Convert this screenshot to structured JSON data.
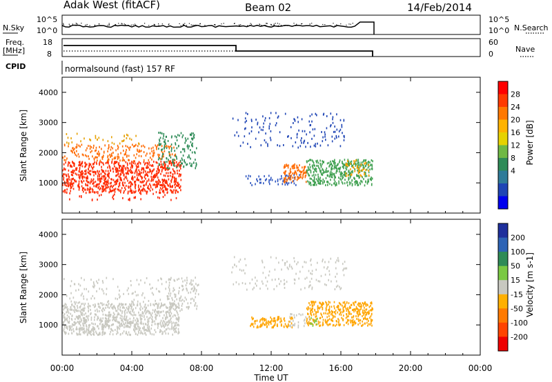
{
  "header": {
    "station": "Adak West (fitACF)",
    "beam": "Beam 02",
    "date": "14/Feb/2014"
  },
  "panel_labels": {
    "nsky": "N.Sky",
    "nsearch": "N.Search",
    "freq_line1": "Freq.",
    "freq_line2": "[MHz]",
    "nave": "Nave",
    "cpid": "CPID",
    "cpid_text": "normalsound (fast) 157 RF"
  },
  "noise_axis": {
    "left_ticks": [
      "10^5",
      "10^0"
    ],
    "right_ticks": [
      "10^5",
      "10^0"
    ]
  },
  "freq_axis": {
    "left_ticks": [
      "18",
      "8"
    ],
    "right_ticks": [
      "60",
      "0"
    ]
  },
  "chart_data": [
    {
      "type": "heatmap",
      "name": "power",
      "ylabel": "Slant Range [km]",
      "ylim": [
        0,
        4500
      ],
      "yticks": [
        1000,
        2000,
        3000,
        4000
      ],
      "xlabel": "Time UT",
      "xlim": [
        0,
        24
      ],
      "xticks": [
        "00:00",
        "04:00",
        "08:00",
        "12:00",
        "16:00",
        "20:00",
        "00:00"
      ],
      "colorbar": {
        "label": "Power [dB]",
        "ticks": [
          "28",
          "24",
          "20",
          "16",
          "12",
          "8",
          "4"
        ],
        "colors": [
          "#ff0000",
          "#ff3a00",
          "#ff7800",
          "#ffb300",
          "#e6d200",
          "#6fb944",
          "#2e8b57",
          "#2f7b99",
          "#1f45b5",
          "#0000ee"
        ]
      },
      "regions": [
        {
          "t": [
            0.0,
            6.7
          ],
          "r": [
            450,
            700
          ],
          "level": "sparse",
          "color": "#ff2200"
        },
        {
          "t": [
            0.0,
            6.8
          ],
          "r": [
            700,
            1750
          ],
          "level": "dense",
          "color": "#ff2a00"
        },
        {
          "t": [
            0.0,
            6.5
          ],
          "r": [
            1750,
            2300
          ],
          "level": "medium",
          "color": "#ff6a00"
        },
        {
          "t": [
            0.0,
            4.5
          ],
          "r": [
            2300,
            2700
          ],
          "level": "sparse",
          "color": "#e6a000"
        },
        {
          "t": [
            5.5,
            7.7
          ],
          "r": [
            1500,
            2700
          ],
          "level": "medium",
          "color": "#2e8b57"
        },
        {
          "t": [
            9.7,
            16.3
          ],
          "r": [
            2200,
            3350
          ],
          "level": "sparse",
          "color": "#1f45b5"
        },
        {
          "t": [
            10.5,
            13.6
          ],
          "r": [
            950,
            1300
          ],
          "level": "medium",
          "color": "#2f56c0"
        },
        {
          "t": [
            12.7,
            14.0
          ],
          "r": [
            1050,
            1650
          ],
          "level": "dense",
          "color": "#ff6a00"
        },
        {
          "t": [
            14.0,
            17.8
          ],
          "r": [
            950,
            1800
          ],
          "level": "dense",
          "color": "#3fa050"
        },
        {
          "t": [
            16.2,
            17.6
          ],
          "r": [
            1250,
            1800
          ],
          "level": "medium",
          "color": "#ffa000"
        }
      ]
    },
    {
      "type": "heatmap",
      "name": "velocity",
      "ylabel": "Slant Range [km]",
      "ylim": [
        0,
        4500
      ],
      "yticks": [
        1000,
        2000,
        3000,
        4000
      ],
      "xlabel": "Time UT",
      "xlim": [
        0,
        24
      ],
      "xticks": [
        "00:00",
        "04:00",
        "08:00",
        "12:00",
        "16:00",
        "20:00",
        "00:00"
      ],
      "colorbar": {
        "label": "Velocity [m s-1]",
        "ticks": [
          "200",
          "100",
          "50",
          "15",
          "-15",
          "-50",
          "-100",
          "-200"
        ],
        "colors": [
          "#1e2f9c",
          "#2d63b5",
          "#2e8b57",
          "#7ac943",
          "#c8c8c0",
          "#ffb000",
          "#ff7a00",
          "#ff4400",
          "#ee0000"
        ]
      },
      "regions": [
        {
          "t": [
            0.0,
            6.7
          ],
          "r": [
            700,
            1750
          ],
          "level": "dense",
          "color": "#c8c8c0"
        },
        {
          "t": [
            0.0,
            6.5
          ],
          "r": [
            1750,
            2600
          ],
          "level": "sparse",
          "color": "#c8c8c0"
        },
        {
          "t": [
            6.0,
            7.8
          ],
          "r": [
            1500,
            2600
          ],
          "level": "medium",
          "color": "#c8c8c0"
        },
        {
          "t": [
            9.7,
            16.3
          ],
          "r": [
            2200,
            3300
          ],
          "level": "sparse",
          "color": "#c8c8c0"
        },
        {
          "t": [
            10.7,
            13.2
          ],
          "r": [
            950,
            1300
          ],
          "level": "dense",
          "color": "#ffa500"
        },
        {
          "t": [
            13.0,
            14.2
          ],
          "r": [
            950,
            1400
          ],
          "level": "medium",
          "color": "#c8c8c0"
        },
        {
          "t": [
            14.0,
            17.8
          ],
          "r": [
            1000,
            1800
          ],
          "level": "dense",
          "color": "#ffa500"
        },
        {
          "t": [
            14.2,
            14.8
          ],
          "r": [
            1000,
            1300
          ],
          "level": "medium",
          "color": "#7ac943"
        }
      ]
    }
  ]
}
